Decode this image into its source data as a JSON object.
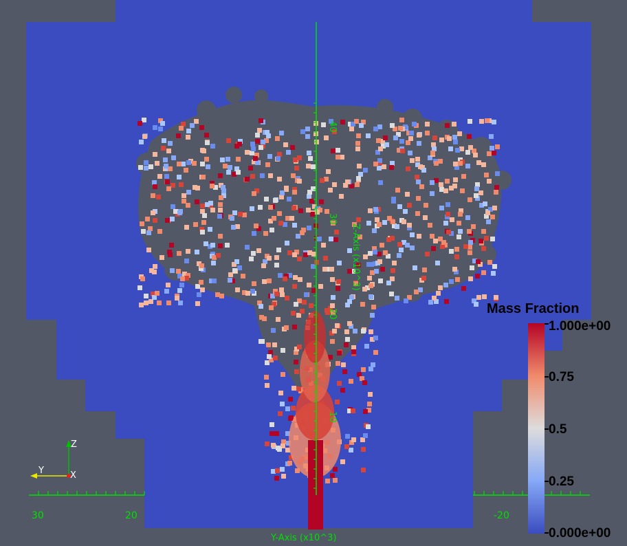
{
  "legend": {
    "title": "Mass Fraction",
    "labels": [
      "1.000e+00",
      "0.75",
      "0.5",
      "0.25",
      "0.000e+00"
    ]
  },
  "axes": {
    "y_axis_title": "Y-Axis (x10^3)",
    "z_axis_title": "Z-Axis (x10^3)",
    "y_ticks": [
      "30",
      "20",
      "-20"
    ],
    "z_ticks": [
      "10",
      "20",
      "30",
      "40"
    ]
  },
  "orientation": {
    "z": "Z",
    "y": "Y",
    "x": "X"
  },
  "colors": {
    "background": "#525866",
    "domain": "#3b4cc0",
    "axis": "#00e000",
    "high": "#b40426",
    "mid": "#dddcdc",
    "low": "#3b4cc0"
  },
  "chart_data": {
    "type": "heatmap",
    "variable": "Mass Fraction",
    "range": [
      0,
      1
    ],
    "colormap": "cool-to-warm",
    "legend_placement": "right",
    "x_axis": {
      "label": "Y-Axis (x10^3)",
      "ticks": [
        30,
        20,
        -20
      ]
    },
    "y_axis": {
      "label": "Z-Axis (x10^3)",
      "ticks": [
        10,
        20,
        30,
        40
      ]
    }
  }
}
